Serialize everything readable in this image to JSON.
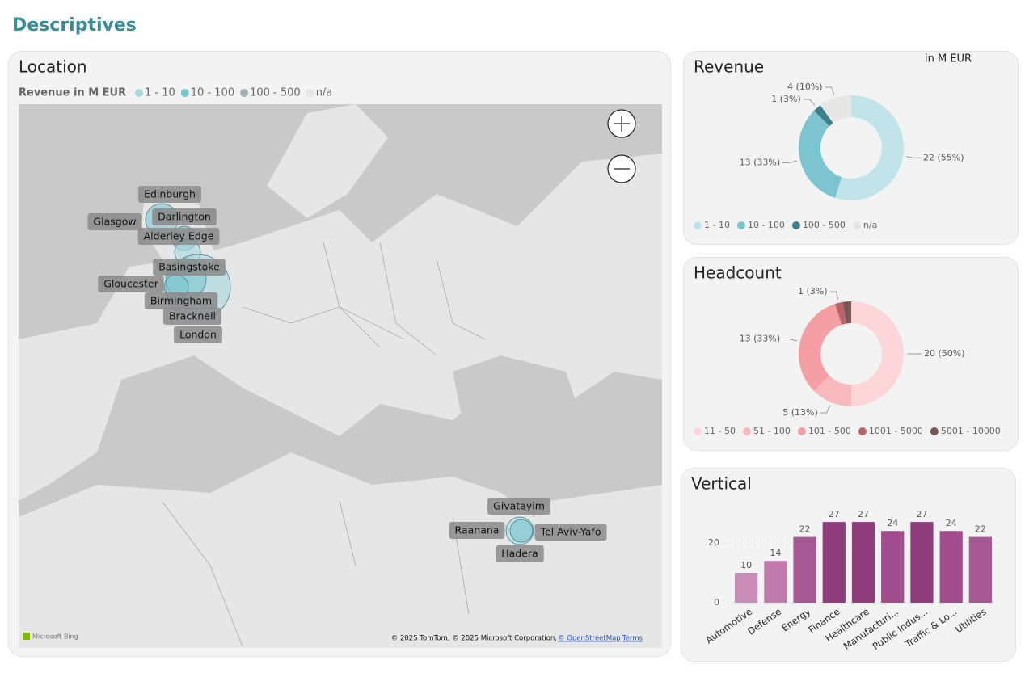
{
  "page_title": "Descriptives",
  "location": {
    "title": "Location",
    "legend_title": "Revenue in M EUR",
    "legend": [
      {
        "label": "1 - 10",
        "color": "#a6d8de"
      },
      {
        "label": "10 - 100",
        "color": "#7cc4d0"
      },
      {
        "label": "100 - 500",
        "color": "#9fb0b3"
      },
      {
        "label": "n/a",
        "color": "#e6e6e6"
      }
    ],
    "cities": [
      "Edinburgh",
      "Glasgow",
      "Darlington",
      "Alderley Edge",
      "Basingstoke",
      "Gloucester",
      "Birmingham",
      "Bracknell",
      "London",
      "Givatayim",
      "Raanana",
      "Tel Aviv-Yafo",
      "Hadera"
    ],
    "brand": "Microsoft Bing",
    "attribution": "© 2025 TomTom, © 2025 Microsoft Corporation,",
    "osm": "© OpenStreetMap",
    "terms": "Terms"
  },
  "chart_data": [
    {
      "type": "pie",
      "title": "Revenue",
      "subtitle": "in M EUR",
      "categories": [
        "1 - 10",
        "10 - 100",
        "100 - 500",
        "n/a"
      ],
      "values": [
        22,
        13,
        1,
        4
      ],
      "value_labels": [
        "22 (55%)",
        "13 (33%)",
        "1 (3%)",
        "4 (10%)"
      ],
      "colors": [
        "#c0e4ea",
        "#7cc4d0",
        "#3d7f8a",
        "#e6e6e6"
      ]
    },
    {
      "type": "pie",
      "title": "Headcount",
      "categories": [
        "11 - 50",
        "51 - 100",
        "101 - 500",
        "1001 - 5000",
        "5001 - 10000"
      ],
      "values": [
        20,
        5,
        13,
        1,
        1
      ],
      "value_labels": [
        "20 (50%)",
        "5 (13%)",
        "13 (33%)",
        "1 (3%)",
        null
      ],
      "colors": [
        "#fcd6d8",
        "#f8b9bc",
        "#f59ea3",
        "#b96468",
        "#7b5456"
      ]
    },
    {
      "type": "bar",
      "title": "Vertical",
      "categories": [
        "Automotive",
        "Defense",
        "Energy",
        "Finance",
        "Healthcare",
        "Manufacturi...",
        "Public Indus...",
        "Traffic & Lo...",
        "Utilities"
      ],
      "values": [
        10,
        14,
        22,
        27,
        27,
        24,
        27,
        24,
        22
      ],
      "colors": [
        "#c98bb8",
        "#c07aae",
        "#a65994",
        "#8f3d7d",
        "#8f3d7d",
        "#a14d8d",
        "#8f3d7d",
        "#a14d8d",
        "#a65994"
      ],
      "ylim": [
        0,
        30
      ],
      "yticks": [
        0,
        20
      ],
      "grid": true
    }
  ]
}
